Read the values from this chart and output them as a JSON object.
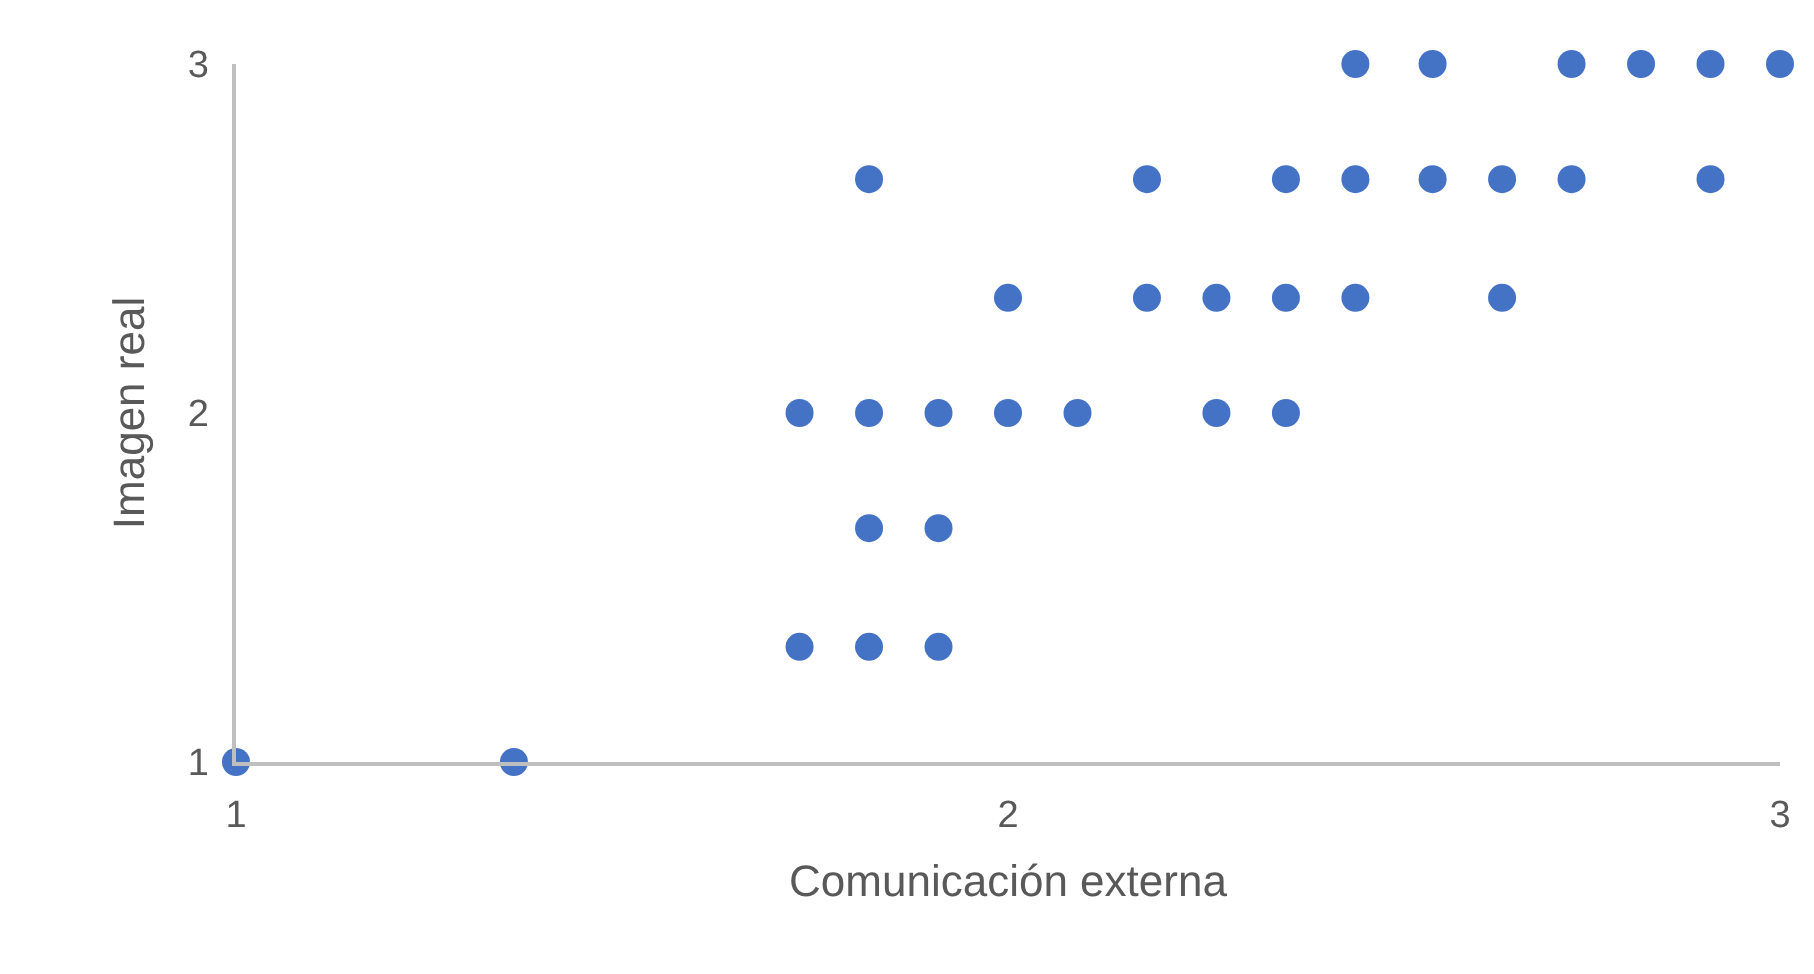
{
  "chart_data": {
    "type": "scatter",
    "xlabel": "Comunicación externa",
    "ylabel": "Imagen real",
    "x": [
      1,
      1.36,
      1.73,
      1.82,
      1.91,
      1.82,
      1.91,
      1.73,
      1.82,
      1.91,
      2,
      2.09,
      2.27,
      2.36,
      2,
      2.18,
      2.27,
      2.36,
      2.45,
      2.64,
      1.82,
      2.18,
      2.36,
      2.45,
      2.55,
      2.64,
      2.73,
      2.91,
      2.45,
      2.55,
      2.73,
      2.82,
      2.91,
      3
    ],
    "values": [
      1,
      1,
      1.33,
      1.33,
      1.33,
      1.67,
      1.67,
      2,
      2,
      2,
      2,
      2,
      2,
      2,
      2.33,
      2.33,
      2.33,
      2.33,
      2.33,
      2.33,
      2.67,
      2.67,
      2.67,
      2.67,
      2.67,
      2.67,
      2.67,
      2.67,
      3,
      3,
      3,
      3,
      3,
      3
    ],
    "color": "#4472c4",
    "marker": "circle",
    "xlim": [
      1,
      3
    ],
    "ylim": [
      1,
      3
    ],
    "xticks": [
      1,
      2,
      3
    ],
    "yticks": [
      1,
      2,
      3
    ]
  }
}
